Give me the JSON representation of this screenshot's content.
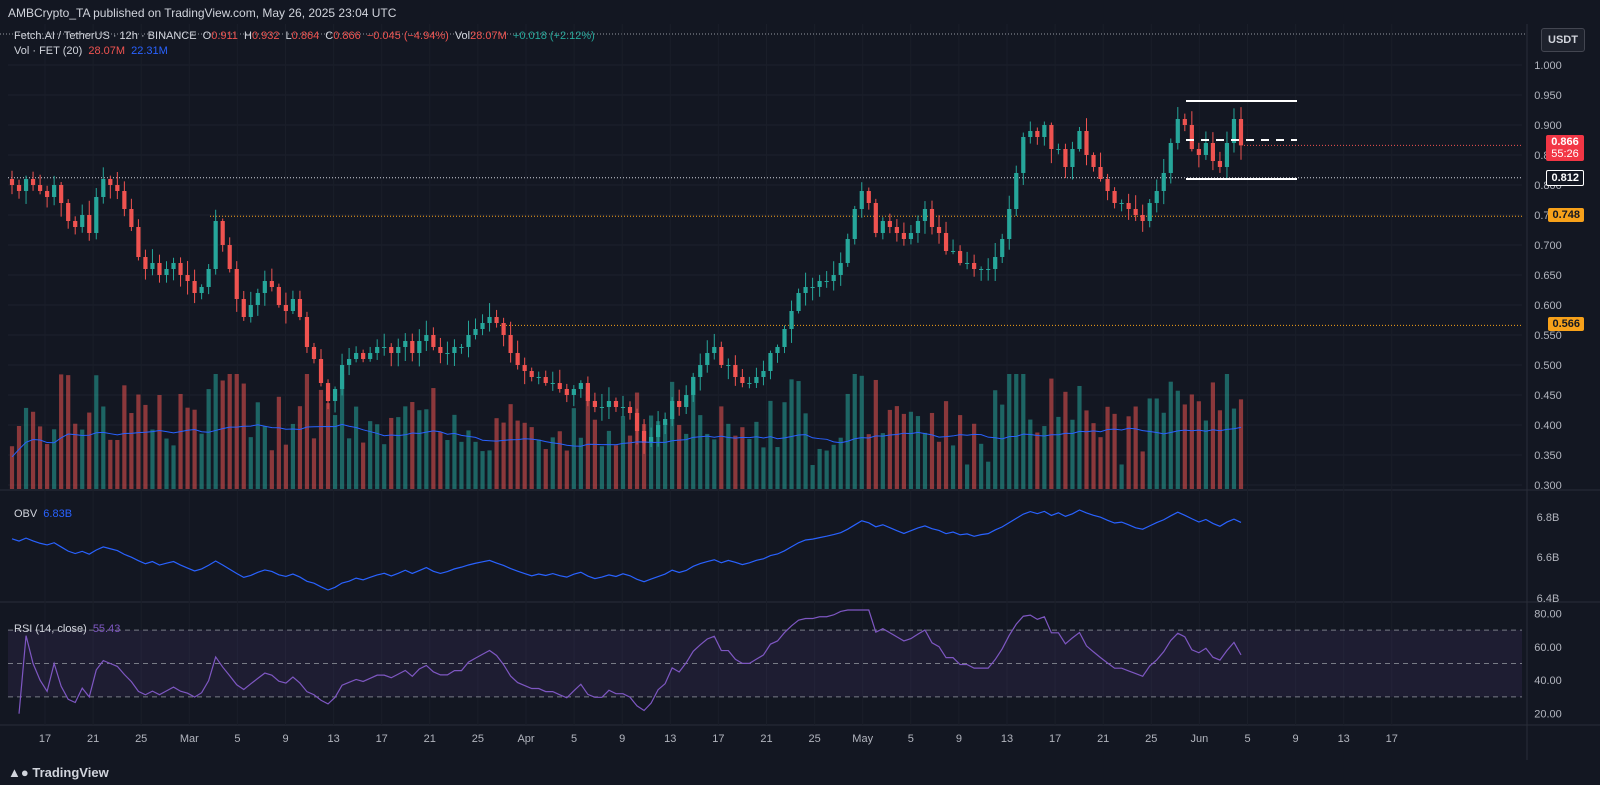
{
  "publisher_line": "AMBCrypto_TA published on TradingView.com, May 26, 2025 23:04 UTC",
  "footer_brand": "TradingView",
  "currency": "USDT",
  "legend": {
    "symbol": "Fetch.AI / TetherUS · 12h · BINANCE",
    "o_label": "O",
    "o_value": "0.911",
    "h_label": "H",
    "h_value": "0.932",
    "l_label": "L",
    "l_value": "0.864",
    "c_label": "C",
    "c_value": "0.866",
    "change": "−0.045 (−4.94%)",
    "vol_label": "Vol",
    "vol_value": "28.07M",
    "vol_change": "+0.018 (+2.12%)",
    "vol_study": "Vol · FET (20)",
    "vol_study_value1": "28.07M",
    "vol_study_value2": "22.31M",
    "obv_label": "OBV",
    "obv_value": "6.83B",
    "rsi_label": "RSI (14, close)",
    "rsi_value": "55.43"
  },
  "price_labels": {
    "last": "0.866",
    "countdown": "55:26",
    "support": "0.812",
    "level_1": "0.748",
    "level_2": "0.566"
  },
  "colors": {
    "up": "#26a69a",
    "down": "#ef5350",
    "background": "#131722",
    "ma": "#2962ff",
    "obv": "#2962ff",
    "rsi": "#7e57c2",
    "level": "#f7a11a"
  },
  "chart_data": {
    "type": "candlestick",
    "title": "Fetch.AI / TetherUS · 12h · BINANCE",
    "price_axis": {
      "ticks": [
        "1.000",
        "0.950",
        "0.900",
        "0.850",
        "0.800",
        "0.750",
        "0.700",
        "0.650",
        "0.600",
        "0.550",
        "0.500",
        "0.450",
        "0.400",
        "0.350",
        "0.300"
      ],
      "ylim": [
        0.28,
        1.03
      ]
    },
    "x_ticks": [
      "17",
      "21",
      "25",
      "Mar",
      "5",
      "9",
      "13",
      "17",
      "21",
      "25",
      "Apr",
      "5",
      "9",
      "13",
      "17",
      "21",
      "25",
      "May",
      "5",
      "9",
      "13",
      "17",
      "21",
      "25",
      "Jun",
      "5",
      "9",
      "13",
      "17"
    ],
    "start_date": "2025-02-14",
    "candles_per_day": 2,
    "close_series": [
      0.8,
      0.79,
      0.81,
      0.8,
      0.79,
      0.78,
      0.8,
      0.77,
      0.74,
      0.73,
      0.75,
      0.72,
      0.78,
      0.81,
      0.8,
      0.79,
      0.76,
      0.73,
      0.68,
      0.66,
      0.67,
      0.65,
      0.66,
      0.67,
      0.65,
      0.64,
      0.62,
      0.63,
      0.66,
      0.74,
      0.7,
      0.66,
      0.61,
      0.58,
      0.6,
      0.62,
      0.64,
      0.63,
      0.6,
      0.59,
      0.61,
      0.58,
      0.53,
      0.51,
      0.47,
      0.44,
      0.46,
      0.5,
      0.51,
      0.52,
      0.51,
      0.52,
      0.53,
      0.53,
      0.52,
      0.53,
      0.54,
      0.52,
      0.54,
      0.55,
      0.53,
      0.52,
      0.52,
      0.53,
      0.53,
      0.55,
      0.56,
      0.57,
      0.58,
      0.57,
      0.55,
      0.52,
      0.5,
      0.49,
      0.48,
      0.48,
      0.47,
      0.47,
      0.46,
      0.45,
      0.46,
      0.47,
      0.44,
      0.43,
      0.43,
      0.44,
      0.43,
      0.43,
      0.42,
      0.39,
      0.37,
      0.38,
      0.4,
      0.41,
      0.44,
      0.43,
      0.45,
      0.48,
      0.5,
      0.52,
      0.53,
      0.5,
      0.5,
      0.48,
      0.47,
      0.47,
      0.48,
      0.49,
      0.52,
      0.53,
      0.56,
      0.59,
      0.62,
      0.63,
      0.63,
      0.64,
      0.64,
      0.65,
      0.67,
      0.71,
      0.76,
      0.79,
      0.77,
      0.72,
      0.74,
      0.73,
      0.72,
      0.71,
      0.72,
      0.74,
      0.76,
      0.73,
      0.72,
      0.69,
      0.69,
      0.67,
      0.67,
      0.66,
      0.66,
      0.66,
      0.68,
      0.71,
      0.76,
      0.82,
      0.88,
      0.89,
      0.88,
      0.9,
      0.86,
      0.86,
      0.83,
      0.86,
      0.89,
      0.85,
      0.83,
      0.81,
      0.79,
      0.77,
      0.77,
      0.76,
      0.75,
      0.74,
      0.77,
      0.79,
      0.82,
      0.87,
      0.91,
      0.9,
      0.86,
      0.85,
      0.87,
      0.84,
      0.83,
      0.87,
      0.91,
      0.866
    ],
    "volume_unit": "M",
    "obv_axis": {
      "ticks": [
        "6.8B",
        "6.6B",
        "6.4B"
      ]
    },
    "rsi_axis": {
      "ticks": [
        "80.00",
        "60.00",
        "40.00",
        "20.00"
      ],
      "bands": [
        70,
        50,
        30
      ]
    },
    "horizontal_levels": [
      0.748,
      0.566,
      0.812
    ],
    "rectangle": {
      "top": 0.94,
      "mid": 0.875,
      "bottom": 0.81
    }
  }
}
